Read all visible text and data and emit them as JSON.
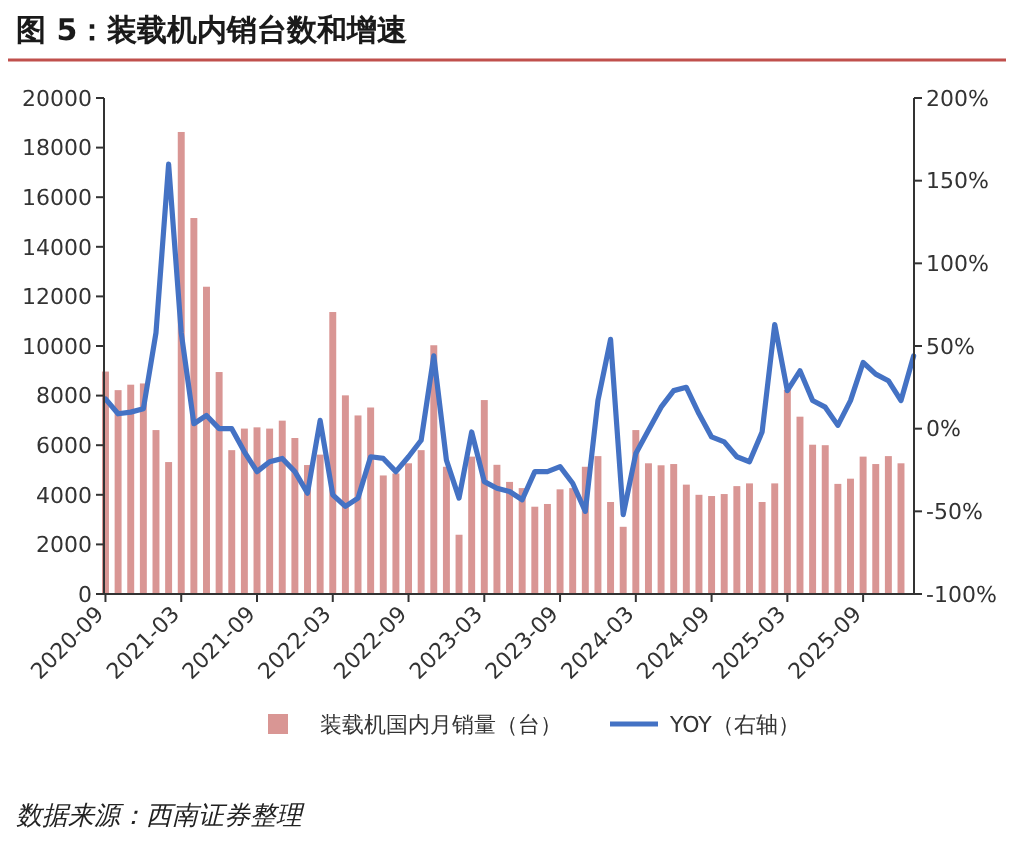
{
  "chart_data": {
    "type": "bar",
    "title": "图 5：装载机内销台数和增速",
    "categories": [
      "2020-09",
      null,
      null,
      null,
      null,
      null,
      "2021-03",
      null,
      null,
      null,
      null,
      null,
      "2021-09",
      null,
      null,
      null,
      null,
      null,
      "2022-03",
      null,
      null,
      null,
      null,
      null,
      "2022-09",
      null,
      null,
      null,
      null,
      null,
      "2023-03",
      null,
      null,
      null,
      null,
      null,
      "2023-09",
      null,
      null,
      null,
      null,
      null,
      "2024-03",
      null,
      null,
      null,
      null,
      null,
      "2024-09",
      null,
      null,
      null,
      null,
      null,
      "2025-03",
      null,
      null,
      null,
      null,
      null,
      "2025-09",
      null,
      null,
      null,
      null
    ],
    "series": [
      {
        "name": "装载机国内月销量（台）",
        "color": "#d99694",
        "values": [
          8970,
          8220,
          8440,
          8490,
          6610,
          5320,
          18630,
          15160,
          12390,
          8950,
          5800,
          6670,
          6720,
          6670,
          6990,
          6290,
          5200,
          5620,
          11370,
          8010,
          7200,
          7520,
          4780,
          4860,
          5270,
          5800,
          10030,
          5130,
          2390,
          5540,
          7820,
          5210,
          4520,
          4270,
          3520,
          3630,
          4220,
          4270,
          5130,
          5560,
          3710,
          2710,
          6610,
          5270,
          5190,
          5240,
          4410,
          4000,
          3950,
          4030,
          4350,
          4460,
          3710,
          4460,
          8230,
          7150,
          6020,
          6000,
          4440,
          4650,
          5540,
          5240,
          5560,
          5270,
          null
        ]
      },
      {
        "name": "YOY（右轴）",
        "type": "line",
        "axis": "y2",
        "color": "#4472c4",
        "values": [
          18,
          9,
          10,
          12,
          58,
          160,
          58,
          3,
          8,
          0,
          0,
          -14,
          -26,
          -20,
          -18,
          -26,
          -39,
          5,
          -40,
          -47,
          -42,
          -17,
          -18,
          -26,
          -17,
          -7,
          44,
          -19,
          -42,
          -2,
          -32,
          -36,
          -38,
          -43,
          -26,
          -26,
          -23,
          -33,
          -50,
          17,
          54,
          -52,
          -15,
          -1,
          13,
          23,
          25,
          9,
          -5,
          -8,
          -17,
          -20,
          -2,
          63,
          23,
          35,
          17,
          13,
          2,
          17,
          40,
          33,
          29,
          17,
          44
        ]
      }
    ],
    "ylim": [
      0,
      20000
    ],
    "yticks": [
      0,
      2000,
      4000,
      6000,
      8000,
      10000,
      12000,
      14000,
      16000,
      18000,
      20000
    ],
    "y2lim": [
      -100,
      200
    ],
    "y2ticks": [
      {
        "value": -100,
        "label": "-100%"
      },
      {
        "value": -50,
        "label": "-50%"
      },
      {
        "value": 0,
        "label": "0%"
      },
      {
        "value": 50,
        "label": "50%"
      },
      {
        "value": 100,
        "label": "100%"
      },
      {
        "value": 150,
        "label": "150%"
      },
      {
        "value": 200,
        "label": "200%"
      }
    ],
    "legend": "bottom",
    "annotations": [
      "数据来源：西南证券整理"
    ]
  }
}
